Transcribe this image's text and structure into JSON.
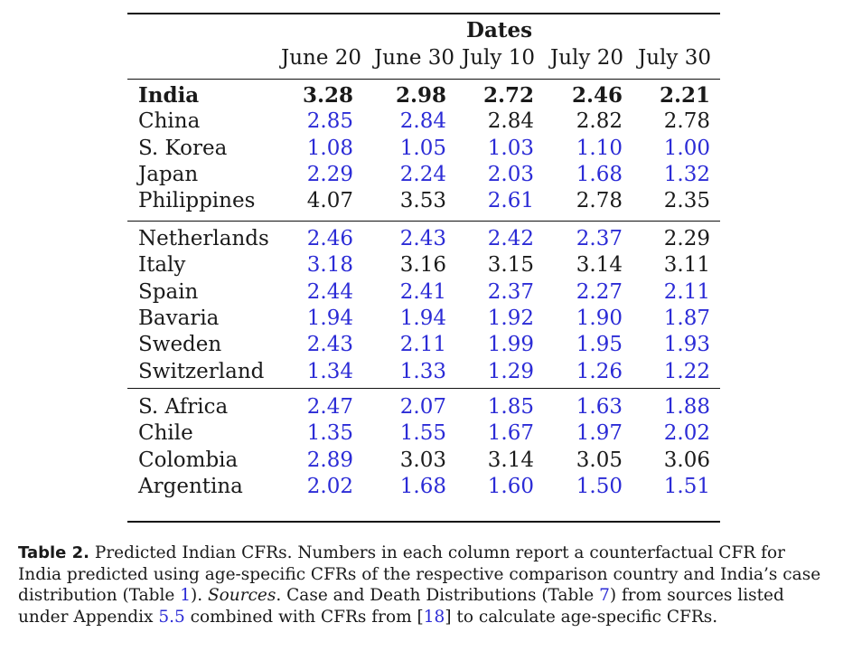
{
  "table": {
    "header_group": "Dates",
    "columns": [
      "June 20",
      "June 30",
      "July 10",
      "July 20",
      "July 30"
    ],
    "groups": [
      [
        {
          "country": "India",
          "bold": true,
          "values": [
            "3.28",
            "2.98",
            "2.72",
            "2.46",
            "2.21"
          ],
          "blue": [
            false,
            false,
            false,
            false,
            false
          ]
        },
        {
          "country": "China",
          "values": [
            "2.85",
            "2.84",
            "2.84",
            "2.82",
            "2.78"
          ],
          "blue": [
            true,
            true,
            false,
            false,
            false
          ]
        },
        {
          "country": "S. Korea",
          "values": [
            "1.08",
            "1.05",
            "1.03",
            "1.10",
            "1.00"
          ],
          "blue": [
            true,
            true,
            true,
            true,
            true
          ]
        },
        {
          "country": "Japan",
          "values": [
            "2.29",
            "2.24",
            "2.03",
            "1.68",
            "1.32"
          ],
          "blue": [
            true,
            true,
            true,
            true,
            true
          ]
        },
        {
          "country": "Philippines",
          "values": [
            "4.07",
            "3.53",
            "2.61",
            "2.78",
            "2.35"
          ],
          "blue": [
            false,
            false,
            true,
            false,
            false
          ]
        }
      ],
      [
        {
          "country": "Netherlands",
          "values": [
            "2.46",
            "2.43",
            "2.42",
            "2.37",
            "2.29"
          ],
          "blue": [
            true,
            true,
            true,
            true,
            false
          ]
        },
        {
          "country": "Italy",
          "values": [
            "3.18",
            "3.16",
            "3.15",
            "3.14",
            "3.11"
          ],
          "blue": [
            true,
            false,
            false,
            false,
            false
          ]
        },
        {
          "country": "Spain",
          "values": [
            "2.44",
            "2.41",
            "2.37",
            "2.27",
            "2.11"
          ],
          "blue": [
            true,
            true,
            true,
            true,
            true
          ]
        },
        {
          "country": "Bavaria",
          "values": [
            "1.94",
            "1.94",
            "1.92",
            "1.90",
            "1.87"
          ],
          "blue": [
            true,
            true,
            true,
            true,
            true
          ]
        },
        {
          "country": "Sweden",
          "values": [
            "2.43",
            "2.11",
            "1.99",
            "1.95",
            "1.93"
          ],
          "blue": [
            true,
            true,
            true,
            true,
            true
          ]
        },
        {
          "country": "Switzerland",
          "values": [
            "1.34",
            "1.33",
            "1.29",
            "1.26",
            "1.22"
          ],
          "blue": [
            true,
            true,
            true,
            true,
            true
          ]
        }
      ],
      [
        {
          "country": "S. Africa",
          "values": [
            "2.47",
            "2.07",
            "1.85",
            "1.63",
            "1.88"
          ],
          "blue": [
            true,
            true,
            true,
            true,
            true
          ]
        },
        {
          "country": "Chile",
          "values": [
            "1.35",
            "1.55",
            "1.67",
            "1.97",
            "2.02"
          ],
          "blue": [
            true,
            true,
            true,
            true,
            true
          ]
        },
        {
          "country": "Colombia",
          "values": [
            "2.89",
            "3.03",
            "3.14",
            "3.05",
            "3.06"
          ],
          "blue": [
            true,
            false,
            false,
            false,
            false
          ]
        },
        {
          "country": "Argentina",
          "values": [
            "2.02",
            "1.68",
            "1.60",
            "1.50",
            "1.51"
          ],
          "blue": [
            true,
            true,
            true,
            true,
            true
          ]
        }
      ]
    ]
  },
  "caption": {
    "label": "Table 2.",
    "text1": " Predicted Indian CFRs. Numbers in each column report a counterfactual CFR for India predicted using age-specific CFRs of the respective comparison country and India’s case distribution (Table ",
    "ref1": "1",
    "text2": "). ",
    "sources_label": "Sources",
    "text3": ". Case and Death Distributions (Table ",
    "ref2": "7",
    "text4": ") from sources listed under Appendix ",
    "ref3": "5.5",
    "text5": " combined with CFRs from [",
    "ref4": "18",
    "text6": "] to calculate age-specific CFRs."
  },
  "colors": {
    "link_blue": "#2b2bd6",
    "text": "#1a1a1a"
  }
}
